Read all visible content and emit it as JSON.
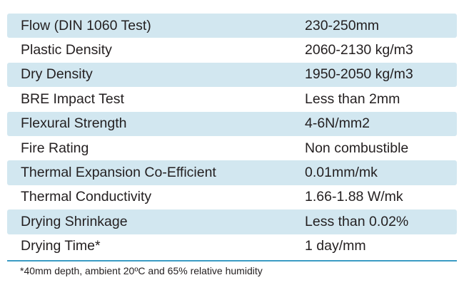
{
  "table": {
    "rows": [
      {
        "label": "Flow (DIN 1060 Test)",
        "value": "230-250mm"
      },
      {
        "label": "Plastic Density",
        "value": "2060-2130 kg/m3"
      },
      {
        "label": "Dry Density",
        "value": "1950-2050 kg/m3"
      },
      {
        "label": "BRE Impact Test",
        "value": "Less than 2mm"
      },
      {
        "label": "Flexural Strength",
        "value": "4-6N/mm2"
      },
      {
        "label": "Fire Rating",
        "value": "Non combustible"
      },
      {
        "label": "Thermal Expansion Co-Efficient",
        "value": "0.01mm/mk"
      },
      {
        "label": "Thermal Conductivity",
        "value": "1.66-1.88 W/mk"
      },
      {
        "label": "Drying Shrinkage",
        "value": "Less than 0.02%"
      },
      {
        "label": "Drying Time*",
        "value": "1 day/mm"
      }
    ]
  },
  "footnote": "*40mm depth, ambient 20ºC and 65% relative humidity",
  "colors": {
    "row_shade": "#d2e7f0",
    "divider": "#3b9bc4",
    "text": "#231f20"
  }
}
